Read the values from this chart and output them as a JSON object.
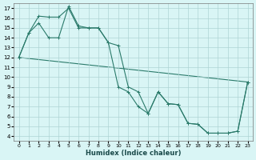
{
  "xlabel": "Humidex (Indice chaleur)",
  "bg_color": "#d9f5f5",
  "grid_color": "#aed4d4",
  "line_color": "#2a7a6a",
  "xlim": [
    -0.5,
    23.5
  ],
  "ylim": [
    3.5,
    17.5
  ],
  "xticks": [
    0,
    1,
    2,
    3,
    4,
    5,
    6,
    7,
    8,
    9,
    10,
    11,
    12,
    13,
    14,
    15,
    16,
    17,
    18,
    19,
    20,
    21,
    22,
    23
  ],
  "yticks": [
    4,
    5,
    6,
    7,
    8,
    9,
    10,
    11,
    12,
    13,
    14,
    15,
    16,
    17
  ],
  "series1": [
    [
      0,
      12
    ],
    [
      1,
      14.5
    ],
    [
      2,
      15.5
    ],
    [
      3,
      14
    ],
    [
      4,
      14
    ],
    [
      5,
      17.2
    ],
    [
      6,
      15.2
    ],
    [
      7,
      15
    ],
    [
      8,
      15
    ],
    [
      9,
      13.5
    ],
    [
      10,
      9
    ],
    [
      11,
      8.5
    ],
    [
      12,
      7
    ],
    [
      13,
      6.3
    ],
    [
      14,
      8.5
    ],
    [
      15,
      7.3
    ],
    [
      16,
      7.2
    ],
    [
      17,
      5.3
    ],
    [
      18,
      5.2
    ],
    [
      19,
      4.3
    ],
    [
      20,
      4.3
    ],
    [
      21,
      4.3
    ],
    [
      22,
      4.5
    ],
    [
      23,
      9.5
    ]
  ],
  "series2": [
    [
      0,
      12
    ],
    [
      1,
      14.5
    ],
    [
      2,
      16.2
    ],
    [
      3,
      16.1
    ],
    [
      4,
      16.1
    ],
    [
      5,
      17.0
    ],
    [
      6,
      15.0
    ],
    [
      7,
      15.0
    ],
    [
      8,
      15.0
    ],
    [
      9,
      13.5
    ],
    [
      10,
      13.2
    ],
    [
      11,
      9.0
    ],
    [
      12,
      8.5
    ],
    [
      13,
      6.3
    ],
    [
      14,
      8.5
    ],
    [
      15,
      7.3
    ],
    [
      16,
      7.2
    ],
    [
      17,
      5.3
    ],
    [
      18,
      5.2
    ],
    [
      19,
      4.3
    ],
    [
      20,
      4.3
    ],
    [
      21,
      4.3
    ],
    [
      22,
      4.5
    ],
    [
      23,
      9.5
    ]
  ],
  "series3": [
    [
      0,
      12
    ],
    [
      23,
      9.5
    ]
  ]
}
